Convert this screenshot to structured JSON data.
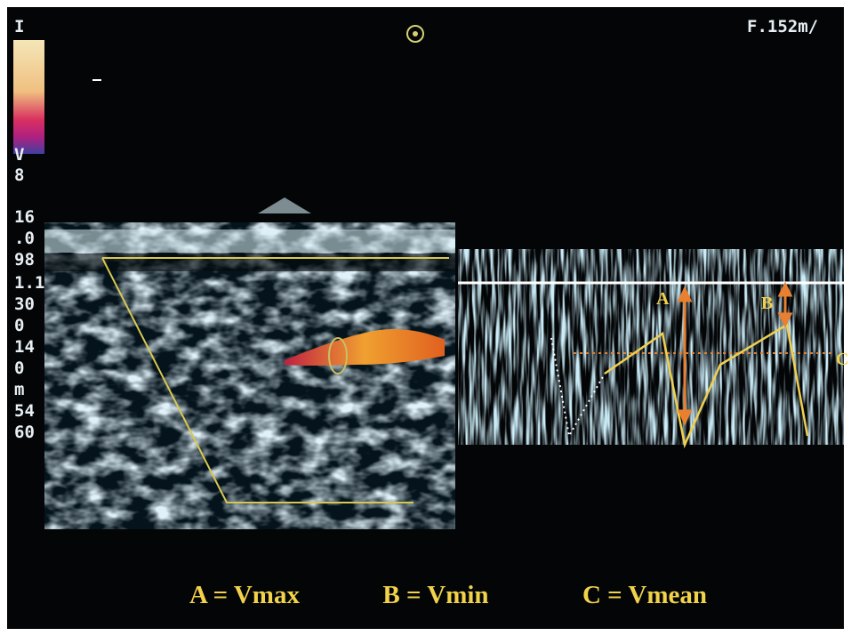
{
  "header": {
    "readout": "F.152m/"
  },
  "scale_labels": [
    "I",
    "V",
    "8",
    "16",
    ".0",
    "98",
    "1.1",
    "30",
    "0",
    "14",
    "0",
    "m",
    "54",
    "60"
  ],
  "waveform_labels": [
    "A",
    "B",
    "C"
  ],
  "legend": [
    "A = Vmax",
    "B = Vmin",
    "C = Vmean"
  ]
}
